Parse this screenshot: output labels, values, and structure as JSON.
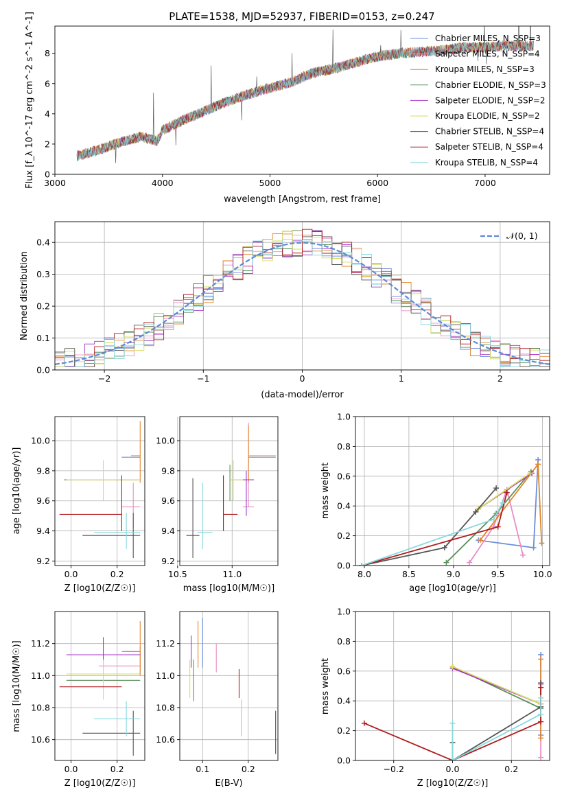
{
  "figure_title": "PLATE=1538, MJD=52937, FIBERID=0153, z=0.247",
  "colors": {
    "chabrier_miles": "#6a8edb",
    "salpeter_miles": "#e88cc4",
    "kroupa_miles": "#e0862b",
    "chabrier_elodie": "#5b8f5b",
    "salpeter_elodie": "#a633c8",
    "kroupa_elodie": "#d6dd5f",
    "chabrier_stelib": "#555555",
    "salpeter_stelib": "#b01c1c",
    "kroupa_stelib": "#88d8dc",
    "gauss": "#5b8bd6",
    "grid": "#b0b0b0"
  },
  "chart_data": [
    {
      "id": "spectrum",
      "type": "line",
      "xlabel": "wavelength [Angstrom, rest frame]",
      "ylabel": "Flux [f_λ 10^-17 erg cm^-2 s^-1 A^-1]",
      "xlim": [
        3000,
        7600
      ],
      "ylim": [
        0,
        9.8
      ],
      "xticks": [
        3000,
        4000,
        5000,
        6000,
        7000
      ],
      "yticks": [
        0,
        2,
        4,
        6,
        8
      ],
      "grid": false,
      "legend_position": "top-right",
      "legend": [
        {
          "label": "Chabrier MILES, N_SSP=3",
          "color_key": "chabrier_miles"
        },
        {
          "label": "Salpeter MILES, N_SSP=4",
          "color_key": "salpeter_miles"
        },
        {
          "label": "Kroupa MILES, N_SSP=3",
          "color_key": "kroupa_miles"
        },
        {
          "label": "Chabrier ELODIE, N_SSP=3",
          "color_key": "chabrier_elodie"
        },
        {
          "label": "Salpeter ELODIE, N_SSP=2",
          "color_key": "salpeter_elodie"
        },
        {
          "label": "Kroupa ELODIE, N_SSP=2",
          "color_key": "kroupa_elodie"
        },
        {
          "label": "Chabrier STELIB, N_SSP=4",
          "color_key": "chabrier_stelib"
        },
        {
          "label": "Salpeter STELIB, N_SSP=4",
          "color_key": "salpeter_stelib"
        },
        {
          "label": "Kroupa STELIB, N_SSP=4",
          "color_key": "kroupa_stelib"
        }
      ],
      "continuum": [
        [
          3200,
          1.2
        ],
        [
          3400,
          1.6
        ],
        [
          3600,
          2.1
        ],
        [
          3800,
          2.5
        ],
        [
          3950,
          2.2
        ],
        [
          4000,
          2.9
        ],
        [
          4200,
          3.6
        ],
        [
          4400,
          4.2
        ],
        [
          4600,
          4.8
        ],
        [
          4800,
          5.3
        ],
        [
          5000,
          5.7
        ],
        [
          5200,
          6.1
        ],
        [
          5400,
          6.7
        ],
        [
          5600,
          7.0
        ],
        [
          5800,
          7.4
        ],
        [
          6000,
          7.8
        ],
        [
          6200,
          8.0
        ],
        [
          6400,
          8.1
        ],
        [
          6600,
          8.2
        ],
        [
          6800,
          8.4
        ],
        [
          7000,
          8.4
        ],
        [
          7200,
          8.5
        ],
        [
          7400,
          8.5
        ]
      ]
    },
    {
      "id": "residuals",
      "type": "line",
      "xlabel": "(data-model)/error",
      "ylabel": "Normed distribution",
      "xlim": [
        -2.5,
        2.5
      ],
      "ylim": [
        0,
        0.465
      ],
      "xticks": [
        -2,
        -1,
        0,
        1,
        2
      ],
      "yticks": [
        0.0,
        0.1,
        0.2,
        0.3,
        0.4
      ],
      "grid": true,
      "legend_position": "top-right",
      "gauss_label": "𝒩(0, 1)"
    },
    {
      "id": "z_age",
      "type": "scatter",
      "xlabel": "Z [log10(Z/Z☉)]",
      "ylabel": "age  [log10(age/yr)]",
      "xlim": [
        -0.07,
        0.32
      ],
      "ylim": [
        9.17,
        10.16
      ],
      "xticks": [
        0.0,
        0.2
      ],
      "yticks": [
        9.2,
        9.4,
        9.6,
        9.8,
        10.0
      ],
      "grid": true,
      "errorbars": [
        {
          "c": "chabrier_miles",
          "x": 0.26,
          "xlo": 0.22,
          "xhi": 0.3,
          "y": 9.89,
          "ylo": 9.89,
          "yhi": 9.89
        },
        {
          "c": "salpeter_miles",
          "x": 0.27,
          "xlo": 0.22,
          "xhi": 0.3,
          "y": 9.56,
          "ylo": 9.42,
          "yhi": 9.72
        },
        {
          "c": "kroupa_miles",
          "x": 0.3,
          "xlo": 0.26,
          "xhi": 0.3,
          "y": 9.9,
          "ylo": 9.72,
          "yhi": 10.13
        },
        {
          "c": "chabrier_elodie",
          "x": 0.12,
          "xlo": -0.03,
          "xhi": 0.29,
          "y": 9.74,
          "ylo": 9.74,
          "yhi": 9.74
        },
        {
          "c": "salpeter_elodie",
          "x": 0.2,
          "xlo": -0.02,
          "xhi": 0.3,
          "y": 9.74,
          "ylo": 9.74,
          "yhi": 9.74
        },
        {
          "c": "kroupa_elodie",
          "x": 0.14,
          "xlo": -0.02,
          "xhi": 0.3,
          "y": 9.74,
          "ylo": 9.6,
          "yhi": 9.87
        },
        {
          "c": "chabrier_stelib",
          "x": 0.27,
          "xlo": 0.05,
          "xhi": 0.3,
          "y": 9.37,
          "ylo": 9.22,
          "yhi": 9.52
        },
        {
          "c": "salpeter_stelib",
          "x": 0.22,
          "xlo": -0.05,
          "xhi": 0.22,
          "y": 9.51,
          "ylo": 9.4,
          "yhi": 9.77
        },
        {
          "c": "kroupa_stelib",
          "x": 0.24,
          "xlo": 0.1,
          "xhi": 0.3,
          "y": 9.39,
          "ylo": 9.28,
          "yhi": 9.52
        }
      ]
    },
    {
      "id": "mass_age",
      "type": "scatter",
      "xlabel": "mass [log10(M/M☉)]",
      "ylabel": "",
      "xlim": [
        10.52,
        11.42
      ],
      "ylim": [
        9.17,
        10.16
      ],
      "xticks": [
        10.5,
        11.0
      ],
      "yticks": [
        9.2,
        9.4,
        9.6,
        9.8,
        10.0
      ],
      "grid": true,
      "errorbars": [
        {
          "c": "chabrier_miles",
          "x": 11.3,
          "xlo": 11.15,
          "xhi": 11.4,
          "y": 9.89,
          "ylo": 9.89,
          "yhi": 9.89
        },
        {
          "c": "salpeter_miles",
          "x": 11.15,
          "xlo": 11.1,
          "xhi": 11.2,
          "y": 9.56,
          "ylo": 9.56,
          "yhi": 10.12
        },
        {
          "c": "kroupa_miles",
          "x": 11.15,
          "xlo": 11.15,
          "xhi": 11.4,
          "y": 9.9,
          "ylo": 9.72,
          "yhi": 10.1
        },
        {
          "c": "chabrier_elodie",
          "x": 10.98,
          "xlo": 10.98,
          "xhi": 10.98,
          "y": 9.74,
          "ylo": 9.6,
          "yhi": 9.84
        },
        {
          "c": "salpeter_elodie",
          "x": 11.13,
          "xlo": 10.98,
          "xhi": 11.2,
          "y": 9.74,
          "ylo": 9.5,
          "yhi": 9.8
        },
        {
          "c": "kroupa_elodie",
          "x": 11.01,
          "xlo": 10.98,
          "xhi": 11.1,
          "y": 9.74,
          "ylo": 9.6,
          "yhi": 9.87
        },
        {
          "c": "chabrier_stelib",
          "x": 10.64,
          "xlo": 10.58,
          "xhi": 10.7,
          "y": 9.37,
          "ylo": 9.22,
          "yhi": 9.75
        },
        {
          "c": "salpeter_stelib",
          "x": 10.92,
          "xlo": 10.92,
          "xhi": 11.05,
          "y": 9.51,
          "ylo": 9.4,
          "yhi": 9.77
        },
        {
          "c": "kroupa_stelib",
          "x": 10.73,
          "xlo": 10.68,
          "xhi": 10.82,
          "y": 9.39,
          "ylo": 9.28,
          "yhi": 9.72
        }
      ]
    },
    {
      "id": "age_weight",
      "type": "line",
      "xlabel": "age  [log10(age/yr)]",
      "ylabel": "mass weight",
      "xlim": [
        7.9,
        10.08
      ],
      "ylim": [
        0,
        1.0
      ],
      "xticks": [
        8.0,
        8.5,
        9.0,
        9.5,
        10.0
      ],
      "yticks": [
        0.0,
        0.2,
        0.4,
        0.6,
        0.8,
        1.0
      ],
      "grid": true,
      "series": [
        {
          "c": "chabrier_miles",
          "x": [
            9.28,
            9.9,
            9.95
          ],
          "y": [
            0.17,
            0.12,
            0.71
          ]
        },
        {
          "c": "salpeter_miles",
          "x": [
            9.18,
            9.45,
            9.6,
            9.78
          ],
          "y": [
            0.02,
            0.26,
            0.51,
            0.07
          ]
        },
        {
          "c": "kroupa_miles",
          "x": [
            9.3,
            9.95,
            9.99
          ],
          "y": [
            0.17,
            0.68,
            0.15
          ]
        },
        {
          "c": "chabrier_elodie",
          "x": [
            8.92,
            9.48,
            9.87
          ],
          "y": [
            0.02,
            0.35,
            0.63
          ]
        },
        {
          "c": "salpeter_elodie",
          "x": [
            9.28,
            9.88
          ],
          "y": [
            0.38,
            0.62
          ]
        },
        {
          "c": "kroupa_elodie",
          "x": [
            9.28,
            9.86
          ],
          "y": [
            0.38,
            0.62
          ]
        },
        {
          "c": "chabrier_stelib",
          "x": [
            7.97,
            8.9,
            9.25,
            9.48
          ],
          "y": [
            0.0,
            0.12,
            0.36,
            0.52
          ]
        },
        {
          "c": "salpeter_stelib",
          "x": [
            7.97,
            9.5,
            9.6
          ],
          "y": [
            0.0,
            0.26,
            0.49
          ]
        },
        {
          "c": "kroupa_stelib",
          "x": [
            7.97,
            9.45,
            9.55
          ],
          "y": [
            0.0,
            0.31,
            0.42
          ]
        }
      ]
    },
    {
      "id": "z_mass",
      "type": "scatter",
      "xlabel": "Z [log10(Z/Z☉)]",
      "ylabel": "mass [log10(M/M☉)]",
      "xlim": [
        -0.07,
        0.32
      ],
      "ylim": [
        10.47,
        11.4
      ],
      "xticks": [
        0.0,
        0.2
      ],
      "yticks": [
        10.6,
        10.8,
        11.0,
        11.2
      ],
      "grid": true,
      "errorbars": [
        {
          "c": "chabrier_miles",
          "x": 0.3,
          "xlo": 0.22,
          "xhi": 0.3,
          "y": 11.15,
          "ylo": 11.15,
          "yhi": 11.15
        },
        {
          "c": "salpeter_miles",
          "x": 0.3,
          "xlo": 0.12,
          "xhi": 0.3,
          "y": 11.06,
          "ylo": 11.0,
          "yhi": 11.18
        },
        {
          "c": "kroupa_miles",
          "x": 0.3,
          "xlo": 0.23,
          "xhi": 0.3,
          "y": 11.15,
          "ylo": 11.0,
          "yhi": 11.34
        },
        {
          "c": "chabrier_elodie",
          "x": 0.14,
          "xlo": -0.02,
          "xhi": 0.3,
          "y": 10.97,
          "ylo": 10.97,
          "yhi": 10.97
        },
        {
          "c": "salpeter_elodie",
          "x": 0.14,
          "xlo": -0.02,
          "xhi": 0.3,
          "y": 11.13,
          "ylo": 11.05,
          "yhi": 11.24
        },
        {
          "c": "kroupa_elodie",
          "x": 0.14,
          "xlo": -0.02,
          "xhi": 0.3,
          "y": 11.01,
          "ylo": 10.85,
          "yhi": 11.1
        },
        {
          "c": "chabrier_stelib",
          "x": 0.27,
          "xlo": 0.05,
          "xhi": 0.3,
          "y": 10.64,
          "ylo": 10.5,
          "yhi": 10.78
        },
        {
          "c": "salpeter_stelib",
          "x": 0.22,
          "xlo": -0.05,
          "xhi": 0.22,
          "y": 10.93,
          "ylo": 10.93,
          "yhi": 10.93
        },
        {
          "c": "kroupa_stelib",
          "x": 0.24,
          "xlo": 0.1,
          "xhi": 0.3,
          "y": 10.73,
          "ylo": 10.62,
          "yhi": 10.84
        }
      ]
    },
    {
      "id": "ebv_mass",
      "type": "scatter",
      "xlabel": "E(B-V)",
      "ylabel": "",
      "xlim": [
        0.05,
        0.265
      ],
      "ylim": [
        10.47,
        11.4
      ],
      "xticks": [
        0.1,
        0.2
      ],
      "yticks": [
        10.6,
        10.8,
        11.0,
        11.2
      ],
      "grid": true,
      "errorbars": [
        {
          "c": "chabrier_miles",
          "x": 0.1,
          "xlo": 0.1,
          "xhi": 0.1,
          "y": 11.2,
          "ylo": 11.05,
          "yhi": 11.36
        },
        {
          "c": "salpeter_miles",
          "x": 0.13,
          "xlo": 0.13,
          "xhi": 0.13,
          "y": 11.11,
          "ylo": 11.02,
          "yhi": 11.2
        },
        {
          "c": "kroupa_miles",
          "x": 0.09,
          "xlo": 0.09,
          "xhi": 0.09,
          "y": 11.2,
          "ylo": 11.05,
          "yhi": 11.34
        },
        {
          "c": "chabrier_elodie",
          "x": 0.08,
          "xlo": 0.08,
          "xhi": 0.08,
          "y": 10.97,
          "ylo": 10.84,
          "yhi": 11.1
        },
        {
          "c": "salpeter_elodie",
          "x": 0.075,
          "xlo": 0.075,
          "xhi": 0.075,
          "y": 11.13,
          "ylo": 11.05,
          "yhi": 11.25
        },
        {
          "c": "kroupa_elodie",
          "x": 0.072,
          "xlo": 0.072,
          "xhi": 0.072,
          "y": 10.98,
          "ylo": 10.86,
          "yhi": 11.1
        },
        {
          "c": "chabrier_stelib",
          "x": 0.26,
          "xlo": 0.26,
          "xhi": 0.26,
          "y": 10.64,
          "ylo": 10.51,
          "yhi": 10.78
        },
        {
          "c": "salpeter_stelib",
          "x": 0.18,
          "xlo": 0.18,
          "xhi": 0.18,
          "y": 10.95,
          "ylo": 10.86,
          "yhi": 11.04
        },
        {
          "c": "kroupa_stelib",
          "x": 0.185,
          "xlo": 0.185,
          "xhi": 0.185,
          "y": 10.73,
          "ylo": 10.62,
          "yhi": 10.85
        }
      ]
    },
    {
      "id": "z_weight",
      "type": "line",
      "xlabel": "Z [log10(Z/Z☉)]",
      "ylabel": "mass weight",
      "xlim": [
        -0.33,
        0.33
      ],
      "ylim": [
        0,
        1.0
      ],
      "xticks": [
        -0.2,
        0.0,
        0.2
      ],
      "yticks": [
        0.0,
        0.2,
        0.4,
        0.6,
        0.8,
        1.0
      ],
      "grid": true,
      "series": [
        {
          "c": "chabrier_miles",
          "x": [
            0.3,
            0.3
          ],
          "y": [
            0.71,
            0.17
          ]
        },
        {
          "c": "salpeter_miles",
          "x": [
            0.3,
            0.3
          ],
          "y": [
            0.51,
            0.02
          ]
        },
        {
          "c": "kroupa_miles",
          "x": [
            0.3,
            0.3
          ],
          "y": [
            0.68,
            0.15
          ]
        },
        {
          "c": "chabrier_elodie",
          "x": [
            0.0,
            0.3
          ],
          "y": [
            0.63,
            0.35
          ]
        },
        {
          "c": "salpeter_elodie",
          "x": [
            0.0,
            0.3
          ],
          "y": [
            0.62,
            0.38
          ]
        },
        {
          "c": "kroupa_elodie",
          "x": [
            0.0,
            0.3
          ],
          "y": [
            0.63,
            0.38
          ]
        },
        {
          "c": "chabrier_stelib",
          "x": [
            0.0,
            0.0,
            0.3,
            0.3
          ],
          "y": [
            0.12,
            0.0,
            0.36,
            0.52
          ]
        },
        {
          "c": "salpeter_stelib",
          "x": [
            -0.3,
            0.0,
            0.3,
            0.3
          ],
          "y": [
            0.25,
            0.0,
            0.26,
            0.49
          ]
        },
        {
          "c": "kroupa_stelib",
          "x": [
            0.0,
            0.0,
            0.3,
            0.3
          ],
          "y": [
            0.25,
            0.0,
            0.31,
            0.42
          ]
        }
      ]
    }
  ]
}
